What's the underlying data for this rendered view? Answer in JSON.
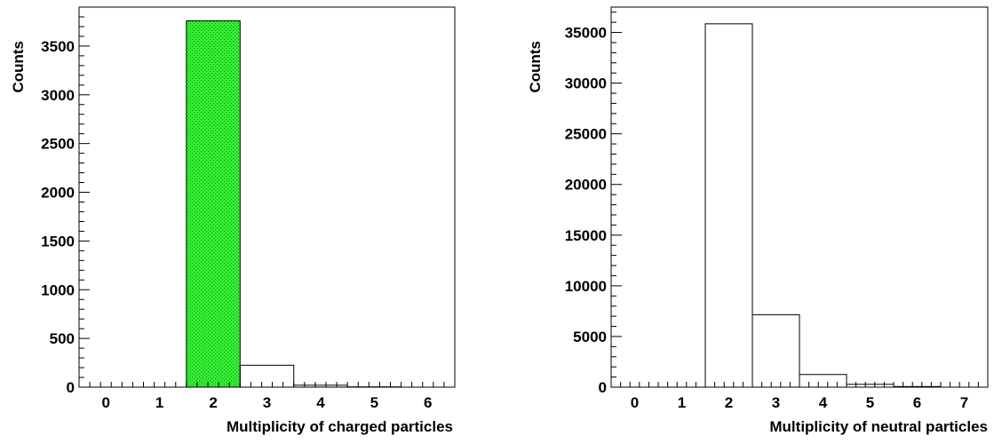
{
  "chart_data": [
    {
      "type": "bar",
      "xlabel": "Multiplicity of charged particles",
      "ylabel": "Counts",
      "xlim": [
        -0.5,
        6.5
      ],
      "ylim": [
        0,
        3900
      ],
      "x_ticks": [
        0,
        1,
        2,
        3,
        4,
        5,
        6
      ],
      "x_tick_labels": [
        "0",
        "1",
        "2",
        "3",
        "4",
        "5",
        "6"
      ],
      "y_ticks": [
        0,
        500,
        1000,
        1500,
        2000,
        2500,
        3000,
        3500
      ],
      "y_tick_labels": [
        "0",
        "500",
        "1000",
        "1500",
        "2000",
        "2500",
        "3000",
        "3500"
      ],
      "grid": false,
      "categories": [
        "0",
        "1",
        "2",
        "3",
        "4",
        "5",
        "6"
      ],
      "values": [
        0,
        0,
        3760,
        225,
        20,
        3,
        0
      ],
      "highlight_bin": "2",
      "highlight_color": "#33ee33"
    },
    {
      "type": "bar",
      "xlabel": "Multiplicity of neutral particles",
      "ylabel": "Counts",
      "xlim": [
        -0.5,
        7.5
      ],
      "ylim": [
        0,
        37500
      ],
      "x_ticks": [
        0,
        1,
        2,
        3,
        4,
        5,
        6,
        7
      ],
      "x_tick_labels": [
        "0",
        "1",
        "2",
        "3",
        "4",
        "5",
        "6",
        "7"
      ],
      "y_ticks": [
        0,
        5000,
        10000,
        15000,
        20000,
        25000,
        30000,
        35000
      ],
      "y_tick_labels": [
        "0",
        "5000",
        "10000",
        "15000",
        "20000",
        "25000",
        "30000",
        "35000"
      ],
      "grid": false,
      "categories": [
        "0",
        "1",
        "2",
        "3",
        "4",
        "5",
        "6",
        "7"
      ],
      "values": [
        0,
        0,
        35850,
        7150,
        1250,
        280,
        60,
        0
      ]
    }
  ]
}
